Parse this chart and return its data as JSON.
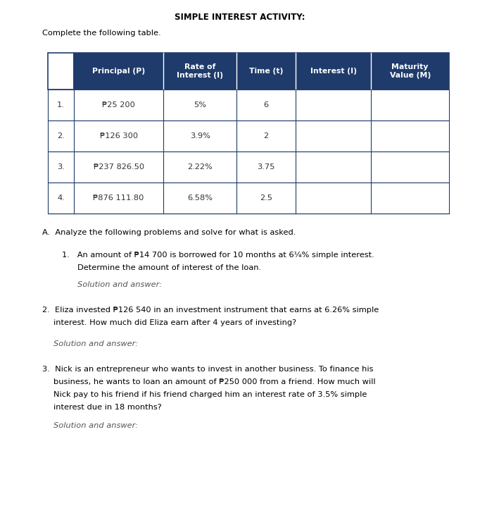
{
  "title": "SIMPLE INTEREST ACTIVITY:",
  "subtitle": "Complete the following table.",
  "header_bg": "#1F3B6B",
  "header_text_color": "#FFFFFF",
  "table_border_color": "#1F3B6B",
  "row_bg": "#FFFFFF",
  "row_text_color": "#333333",
  "col_headers": [
    "Principal (P)",
    "Rate of\nInterest (I)",
    "Time (t)",
    "Interest (I)",
    "Maturity\nValue (M)"
  ],
  "rows": [
    [
      "1.",
      "₱25 200",
      "5%",
      "6",
      "",
      ""
    ],
    [
      "2.",
      "₱126 300",
      "3.9%",
      "2",
      "",
      ""
    ],
    [
      "3.",
      "₱237 826.50",
      "2.22%",
      "3.75",
      "",
      ""
    ],
    [
      "4.",
      "₱876 111.80",
      "6.58%",
      "2.5",
      "",
      ""
    ]
  ],
  "section_a": "A.  Analyze the following problems and solve for what is asked.",
  "bg_color": "#FFFFFF",
  "title_fontsize": 8.5,
  "body_fontsize": 8.2,
  "header_fontsize": 7.8,
  "table_fontsize": 8.2
}
